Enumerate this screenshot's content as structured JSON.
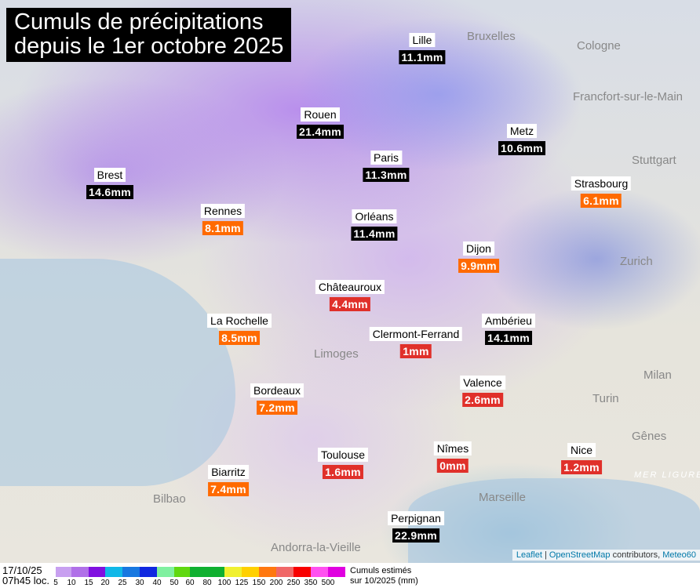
{
  "title": {
    "line1": "Cumuls de précipitations",
    "line2": "depuis le 1er octobre 2025"
  },
  "cities": [
    {
      "name": "Lille",
      "value": "11.1mm",
      "color": "#000000"
    },
    {
      "name": "Rouen",
      "value": "21.4mm",
      "color": "#000000"
    },
    {
      "name": "Metz",
      "value": "10.6mm",
      "color": "#000000"
    },
    {
      "name": "Paris",
      "value": "11.3mm",
      "color": "#000000"
    },
    {
      "name": "Brest",
      "value": "14.6mm",
      "color": "#000000"
    },
    {
      "name": "Strasbourg",
      "value": "6.1mm",
      "color": "#ff6a00"
    },
    {
      "name": "Rennes",
      "value": "8.1mm",
      "color": "#ff6a00"
    },
    {
      "name": "Orléans",
      "value": "11.4mm",
      "color": "#000000"
    },
    {
      "name": "Dijon",
      "value": "9.9mm",
      "color": "#ff6a00"
    },
    {
      "name": "Châteauroux",
      "value": "4.4mm",
      "color": "#e0302a"
    },
    {
      "name": "La Rochelle",
      "value": "8.5mm",
      "color": "#ff6a00"
    },
    {
      "name": "Ambérieu",
      "value": "14.1mm",
      "color": "#000000"
    },
    {
      "name": "Clermont-Ferrand",
      "value": "1mm",
      "color": "#e0302a"
    },
    {
      "name": "Valence",
      "value": "2.6mm",
      "color": "#e0302a"
    },
    {
      "name": "Bordeaux",
      "value": "7.2mm",
      "color": "#ff6a00"
    },
    {
      "name": "Nîmes",
      "value": "0mm",
      "color": "#e0302a"
    },
    {
      "name": "Nice",
      "value": "1.2mm",
      "color": "#e0302a"
    },
    {
      "name": "Toulouse",
      "value": "1.6mm",
      "color": "#e0302a"
    },
    {
      "name": "Biarritz",
      "value": "7.4mm",
      "color": "#ff6a00"
    },
    {
      "name": "Perpignan",
      "value": "22.9mm",
      "color": "#000000"
    }
  ],
  "places": [
    "Bruxelles",
    "Cologne",
    "Francfort-sur-le-Main",
    "Stuttgart",
    "Zurich",
    "Milan",
    "Turin",
    "Gênes",
    "MER LIGURE",
    "Marseille",
    "Bilbao",
    "Andorra-la-Vieille",
    "Limoges"
  ],
  "attribution": {
    "leaflet": "Leaflet",
    "sep": "|",
    "osm": "OpenStreetMap",
    "contrib": "contributors,",
    "meteo": "Meteo60"
  },
  "legend": {
    "date": "17/10/25",
    "time": "07h45 loc.",
    "colors": [
      "#c8a0f0",
      "#b070e8",
      "#8010e0",
      "#10b8e8",
      "#1878e0",
      "#1028e0",
      "#80f0a0",
      "#60d810",
      "#10b030",
      "#f0f030",
      "#ffd000",
      "#ff7810",
      "#f06868",
      "#f80000",
      "#ff50f0",
      "#e000e0"
    ],
    "ticks": [
      "5",
      "10",
      "15",
      "20",
      "25",
      "30",
      "40",
      "50",
      "60",
      "80",
      "100",
      "125",
      "150",
      "200",
      "250",
      "350",
      "500"
    ],
    "caption1": "Cumuls estimés",
    "caption2": "sur 10/2025 (mm)"
  }
}
